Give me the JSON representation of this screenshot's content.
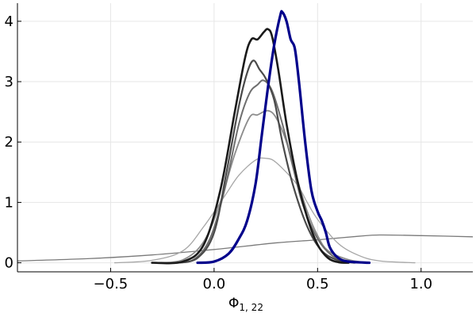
{
  "chart_data": {
    "type": "line",
    "title": "",
    "xlabel": "Φ",
    "xlabel_subscript": "1, 22",
    "ylabel": "",
    "xlim": [
      -0.95,
      1.25
    ],
    "ylim": [
      -0.15,
      4.3
    ],
    "x_ticks": [
      -0.5,
      0.0,
      0.5,
      1.0
    ],
    "x_tick_labels": [
      "−0.5",
      "0.0",
      "0.5",
      "1.0"
    ],
    "y_ticks": [
      0,
      1,
      2,
      3,
      4
    ],
    "y_tick_labels": [
      "0",
      "1",
      "2",
      "3",
      "4"
    ],
    "grid": true,
    "legend": "none",
    "series": [
      {
        "color": "#7a7a7a",
        "width": 1.3,
        "points": [
          [
            -0.95,
            0.03
          ],
          [
            -0.6,
            0.07
          ],
          [
            -0.3,
            0.13
          ],
          [
            0.0,
            0.22
          ],
          [
            0.3,
            0.33
          ],
          [
            0.5,
            0.38
          ],
          [
            0.7,
            0.44
          ],
          [
            0.8,
            0.46
          ],
          [
            1.0,
            0.45
          ],
          [
            1.25,
            0.43
          ]
        ]
      },
      {
        "color": "#a6a6a6",
        "width": 1.3,
        "points": [
          [
            -0.48,
            0.0
          ],
          [
            -0.3,
            0.04
          ],
          [
            -0.15,
            0.2
          ],
          [
            -0.05,
            0.6
          ],
          [
            0.05,
            1.1
          ],
          [
            0.12,
            1.45
          ],
          [
            0.2,
            1.7
          ],
          [
            0.25,
            1.73
          ],
          [
            0.3,
            1.66
          ],
          [
            0.4,
            1.3
          ],
          [
            0.45,
            1.0
          ],
          [
            0.5,
            0.72
          ],
          [
            0.6,
            0.32
          ],
          [
            0.7,
            0.12
          ],
          [
            0.8,
            0.03
          ],
          [
            0.97,
            0.0
          ]
        ]
      },
      {
        "color": "#8c8c8c",
        "width": 1.8,
        "points": [
          [
            -0.28,
            0.0
          ],
          [
            -0.15,
            0.05
          ],
          [
            -0.05,
            0.35
          ],
          [
            0.03,
            1.0
          ],
          [
            0.1,
            1.8
          ],
          [
            0.17,
            2.4
          ],
          [
            0.21,
            2.45
          ],
          [
            0.26,
            2.52
          ],
          [
            0.3,
            2.4
          ],
          [
            0.35,
            2.0
          ],
          [
            0.4,
            1.4
          ],
          [
            0.45,
            0.85
          ],
          [
            0.5,
            0.45
          ],
          [
            0.55,
            0.2
          ],
          [
            0.65,
            0.05
          ],
          [
            0.75,
            0.0
          ]
        ]
      },
      {
        "color": "#6e6e6e",
        "width": 2,
        "points": [
          [
            -0.2,
            0.0
          ],
          [
            -0.1,
            0.05
          ],
          [
            -0.02,
            0.4
          ],
          [
            0.05,
            1.2
          ],
          [
            0.12,
            2.3
          ],
          [
            0.17,
            2.8
          ],
          [
            0.21,
            2.95
          ],
          [
            0.24,
            3.02
          ],
          [
            0.28,
            2.85
          ],
          [
            0.33,
            2.3
          ],
          [
            0.38,
            1.6
          ],
          [
            0.43,
            0.95
          ],
          [
            0.5,
            0.4
          ],
          [
            0.57,
            0.12
          ],
          [
            0.65,
            0.02
          ],
          [
            0.72,
            0.0
          ]
        ]
      },
      {
        "color": "#4a4a4a",
        "width": 2.2,
        "points": [
          [
            -0.18,
            0.0
          ],
          [
            -0.08,
            0.08
          ],
          [
            0.0,
            0.5
          ],
          [
            0.06,
            1.5
          ],
          [
            0.12,
            2.6
          ],
          [
            0.16,
            3.15
          ],
          [
            0.19,
            3.35
          ],
          [
            0.22,
            3.2
          ],
          [
            0.25,
            3.05
          ],
          [
            0.29,
            2.7
          ],
          [
            0.33,
            2.0
          ],
          [
            0.38,
            1.3
          ],
          [
            0.45,
            0.6
          ],
          [
            0.52,
            0.2
          ],
          [
            0.6,
            0.04
          ],
          [
            0.68,
            0.0
          ]
        ]
      },
      {
        "color": "#1a1a1a",
        "width": 2.6,
        "points": [
          [
            -0.3,
            0.0
          ],
          [
            -0.15,
            0.02
          ],
          [
            -0.05,
            0.3
          ],
          [
            0.03,
            1.2
          ],
          [
            0.1,
            2.5
          ],
          [
            0.15,
            3.4
          ],
          [
            0.18,
            3.7
          ],
          [
            0.21,
            3.7
          ],
          [
            0.24,
            3.82
          ],
          [
            0.26,
            3.87
          ],
          [
            0.28,
            3.75
          ],
          [
            0.31,
            3.2
          ],
          [
            0.35,
            2.3
          ],
          [
            0.4,
            1.4
          ],
          [
            0.45,
            0.75
          ],
          [
            0.5,
            0.3
          ],
          [
            0.55,
            0.08
          ],
          [
            0.6,
            0.01
          ],
          [
            0.65,
            0.0
          ]
        ]
      },
      {
        "color": "#00008b",
        "width": 3.2,
        "points": [
          [
            -0.08,
            0.0
          ],
          [
            0.0,
            0.02
          ],
          [
            0.07,
            0.15
          ],
          [
            0.12,
            0.4
          ],
          [
            0.16,
            0.7
          ],
          [
            0.2,
            1.3
          ],
          [
            0.23,
            2.1
          ],
          [
            0.26,
            2.9
          ],
          [
            0.29,
            3.6
          ],
          [
            0.32,
            4.1
          ],
          [
            0.33,
            4.15
          ],
          [
            0.35,
            4.0
          ],
          [
            0.37,
            3.7
          ],
          [
            0.39,
            3.55
          ],
          [
            0.41,
            3.0
          ],
          [
            0.44,
            2.0
          ],
          [
            0.47,
            1.2
          ],
          [
            0.5,
            0.85
          ],
          [
            0.52,
            0.7
          ],
          [
            0.54,
            0.5
          ],
          [
            0.56,
            0.25
          ],
          [
            0.6,
            0.08
          ],
          [
            0.65,
            0.02
          ],
          [
            0.75,
            0.0
          ]
        ]
      }
    ]
  }
}
